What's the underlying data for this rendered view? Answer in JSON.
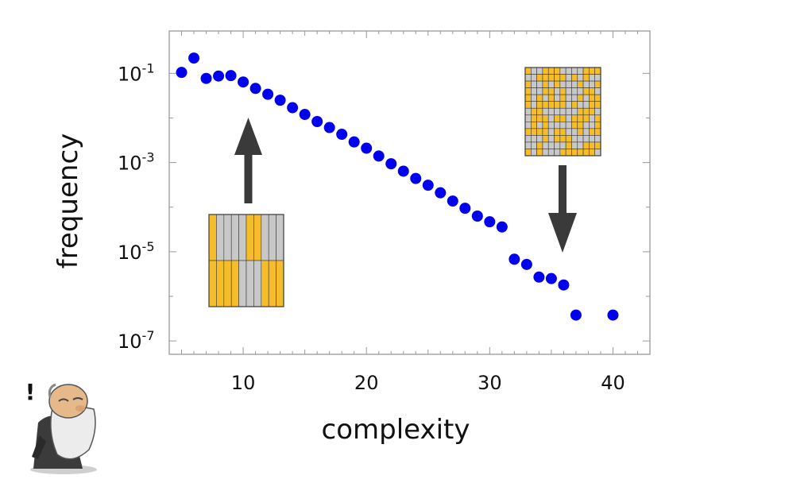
{
  "chart_data": {
    "type": "scatter",
    "xlabel": "complexity",
    "ylabel": "frequency",
    "xlim": [
      4,
      43
    ],
    "ylim": [
      -7.3,
      -0.05
    ],
    "y_scale": "log",
    "grid": false,
    "x_ticks": [
      {
        "value": 10,
        "label": "10"
      },
      {
        "value": 20,
        "label": "20"
      },
      {
        "value": 30,
        "label": "30"
      },
      {
        "value": 40,
        "label": "40"
      }
    ],
    "y_ticks": [
      {
        "exp": -1,
        "base": "10",
        "sup": "-1"
      },
      {
        "exp": -3,
        "base": "10",
        "sup": "-3"
      },
      {
        "exp": -5,
        "base": "10",
        "sup": "-5"
      },
      {
        "exp": -7,
        "base": "10",
        "sup": "-7"
      }
    ],
    "points_color": "#0000ee",
    "series": [
      {
        "x": [
          5,
          6,
          7,
          8,
          9,
          10,
          11,
          12,
          13,
          14,
          15,
          16,
          17,
          18,
          19,
          20,
          21,
          22,
          23,
          24,
          25,
          26,
          27,
          28,
          29,
          30,
          31,
          32,
          33,
          34,
          35,
          36,
          37,
          40
        ],
        "y": [
          0.105,
          0.22,
          0.077,
          0.087,
          0.089,
          0.064,
          0.046,
          0.034,
          0.025,
          0.017,
          0.012,
          0.0083,
          0.0061,
          0.0043,
          0.0029,
          0.0021,
          0.0014,
          0.00094,
          0.00064,
          0.00044,
          0.00031,
          0.00021,
          0.000137,
          9.45e-05,
          6.3e-05,
          4.7e-05,
          3.6e-05,
          6.8e-06,
          5.2e-06,
          2.7e-06,
          2.5e-06,
          1.8e-06,
          3.8e-07,
          3.8e-07
        ]
      }
    ]
  },
  "insets": {
    "low_complexity_pattern": {
      "rows": 2,
      "cols": 10
    },
    "high_complexity_pattern": {
      "rows": 13,
      "cols": 13
    },
    "colors": {
      "yellow": "#f5bd2a",
      "gray": "#c8c8c8",
      "grid": "#3a3a3a",
      "arrow": "#3a3a3a"
    }
  },
  "annotation": {
    "exclamation": "!"
  }
}
